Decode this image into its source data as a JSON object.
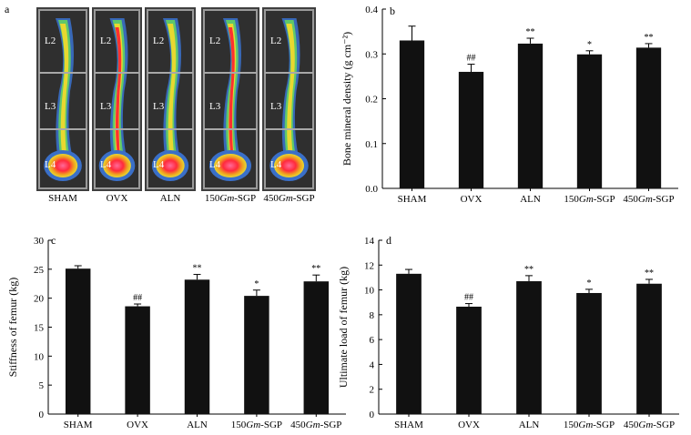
{
  "figure": {
    "groups": [
      "SHAM",
      "OVX",
      "ALN",
      "150Gm-SGP",
      "450Gm-SGP"
    ],
    "group_labels": [
      {
        "pre": "SHAM",
        "it": "",
        "post": ""
      },
      {
        "pre": "OVX",
        "it": "",
        "post": ""
      },
      {
        "pre": "ALN",
        "it": "",
        "post": ""
      },
      {
        "pre": "150",
        "it": "Gm",
        "post": "-SGP"
      },
      {
        "pre": "450",
        "it": "Gm",
        "post": "-SGP"
      }
    ],
    "panel_a": {
      "label": "a",
      "vertebra_labels": [
        "L2",
        "L3",
        "L4"
      ]
    }
  },
  "chart_data": [
    {
      "panel": "b",
      "type": "bar",
      "categories": [
        "SHAM",
        "OVX",
        "ALN",
        "150Gm-SGP",
        "450Gm-SGP"
      ],
      "values": [
        0.33,
        0.26,
        0.323,
        0.299,
        0.314
      ],
      "errors": [
        0.032,
        0.017,
        0.012,
        0.008,
        0.009
      ],
      "annotations": [
        "",
        "##",
        "**",
        "*",
        "**"
      ],
      "ylabel": "Bone mineral density (g cm⁻²)",
      "ylim": [
        0,
        0.4
      ],
      "yticks": [
        "0.0",
        "0.1",
        "0.2",
        "0.3",
        "0.4"
      ],
      "colors": {
        "bar": "#111111"
      }
    },
    {
      "panel": "c",
      "type": "bar",
      "categories": [
        "SHAM",
        "OVX",
        "ALN",
        "150Gm-SGP",
        "450Gm-SGP"
      ],
      "values": [
        25.1,
        18.6,
        23.2,
        20.4,
        22.9
      ],
      "errors": [
        0.5,
        0.4,
        0.9,
        1.0,
        1.1
      ],
      "annotations": [
        "",
        "##",
        "**",
        "*",
        "**"
      ],
      "ylabel": "Stiffness of femur (kg)",
      "ylim": [
        0,
        30
      ],
      "yticks": [
        "0",
        "5",
        "10",
        "15",
        "20",
        "25",
        "30"
      ],
      "colors": {
        "bar": "#111111"
      }
    },
    {
      "panel": "d",
      "type": "bar",
      "categories": [
        "SHAM",
        "OVX",
        "ALN",
        "150Gm-SGP",
        "450Gm-SGP"
      ],
      "values": [
        11.3,
        8.65,
        10.7,
        9.75,
        10.5
      ],
      "errors": [
        0.35,
        0.25,
        0.45,
        0.3,
        0.35
      ],
      "annotations": [
        "",
        "##",
        "**",
        "*",
        "**"
      ],
      "ylabel": "Ultimate load of femur (kg)",
      "ylim": [
        0,
        14
      ],
      "yticks": [
        "0",
        "2",
        "4",
        "6",
        "8",
        "10",
        "12",
        "14"
      ],
      "colors": {
        "bar": "#111111"
      }
    }
  ]
}
